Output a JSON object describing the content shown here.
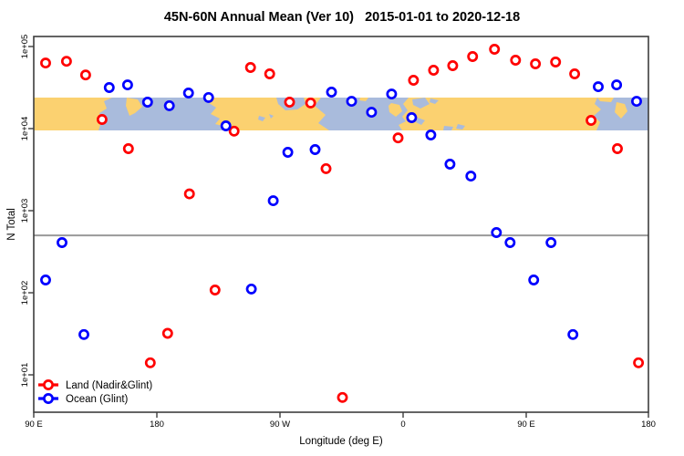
{
  "title": "45N-60N Annual Mean (Ver 10)   2015-01-01 to 2020-12-18",
  "axes": {
    "x": {
      "label": "Longitude (deg E)",
      "ticks": [
        {
          "lon": 90,
          "label": "90 E"
        },
        {
          "lon": 180,
          "label": "180"
        },
        {
          "lon": 270,
          "label": "90 W"
        },
        {
          "lon": 360,
          "label": "0"
        },
        {
          "lon": 450,
          "label": "90 E"
        },
        {
          "lon": 540,
          "label": "180"
        }
      ]
    },
    "y": {
      "label": "N Total",
      "ticks": [
        {
          "value": 100000,
          "label": "1e+05"
        },
        {
          "value": 10000,
          "label": "1e+04"
        },
        {
          "value": 1000,
          "label": "1e+03"
        },
        {
          "value": 100,
          "label": "1e+02"
        },
        {
          "value": 10,
          "label": "1e+01"
        }
      ]
    }
  },
  "legend": [
    {
      "label": "Land (Nadir&Glint)",
      "color": "#ff0000"
    },
    {
      "label": "Ocean (Glint)",
      "color": "#0000ff"
    }
  ],
  "chart_data": {
    "type": "scatter",
    "title": "45N-60N Annual Mean (Ver 10)   2015-01-01 to 2020-12-18",
    "xlabel": "Longitude (deg E)",
    "ylabel": "N Total",
    "x_domain": [
      90,
      540
    ],
    "x_note": "longitude axis wraps: 90E -> 180 -> 90W -> 0 -> 90E -> 180",
    "y_scale": "log10",
    "ylim": [
      3.5,
      130000
    ],
    "grid": false,
    "legend_position": "bottom-left",
    "reference_line": {
      "y": 500,
      "color": "#9a9a9a"
    },
    "map_band": {
      "description": "45N-60N world-map strip drawn across plot",
      "y_min": 10000,
      "y_max": 24000,
      "land_color": "#fbd170",
      "ocean_color": "#a9bbdc"
    },
    "series": [
      {
        "name": "Land (Nadir&Glint)",
        "color": "#ff0000",
        "points": [
          {
            "lon": 98.7,
            "n": 63000
          },
          {
            "lon": 114.0,
            "n": 66000
          },
          {
            "lon": 128.0,
            "n": 45000
          },
          {
            "lon": 140.0,
            "n": 12900
          },
          {
            "lon": 159.3,
            "n": 5700
          },
          {
            "lon": 175.3,
            "n": 14
          },
          {
            "lon": 188.0,
            "n": 32
          },
          {
            "lon": 204.0,
            "n": 1600
          },
          {
            "lon": 222.7,
            "n": 108
          },
          {
            "lon": 236.7,
            "n": 9300
          },
          {
            "lon": 248.7,
            "n": 55500
          },
          {
            "lon": 262.7,
            "n": 46400
          },
          {
            "lon": 277.3,
            "n": 21000
          },
          {
            "lon": 292.7,
            "n": 20500
          },
          {
            "lon": 304.0,
            "n": 3250
          },
          {
            "lon": 316.0,
            "n": 5.3
          },
          {
            "lon": 356.7,
            "n": 7700
          },
          {
            "lon": 368.0,
            "n": 38800
          },
          {
            "lon": 382.7,
            "n": 51400
          },
          {
            "lon": 396.7,
            "n": 58400
          },
          {
            "lon": 411.3,
            "n": 75500
          },
          {
            "lon": 427.3,
            "n": 92600
          },
          {
            "lon": 442.7,
            "n": 68100
          },
          {
            "lon": 457.3,
            "n": 61500
          },
          {
            "lon": 472.0,
            "n": 64700
          },
          {
            "lon": 486.0,
            "n": 46400
          },
          {
            "lon": 498.0,
            "n": 12600
          },
          {
            "lon": 517.3,
            "n": 5700
          },
          {
            "lon": 532.7,
            "n": 14
          }
        ]
      },
      {
        "name": "Ocean (Glint)",
        "color": "#0000ff",
        "points": [
          {
            "lon": 98.7,
            "n": 143
          },
          {
            "lon": 110.7,
            "n": 408
          },
          {
            "lon": 126.7,
            "n": 31
          },
          {
            "lon": 145.3,
            "n": 31600
          },
          {
            "lon": 158.7,
            "n": 34100
          },
          {
            "lon": 173.3,
            "n": 21000
          },
          {
            "lon": 189.3,
            "n": 19000
          },
          {
            "lon": 203.3,
            "n": 27100
          },
          {
            "lon": 218.0,
            "n": 23900
          },
          {
            "lon": 230.7,
            "n": 10800
          },
          {
            "lon": 249.3,
            "n": 111
          },
          {
            "lon": 265.3,
            "n": 1320
          },
          {
            "lon": 276.0,
            "n": 5140
          },
          {
            "lon": 296.0,
            "n": 5550
          },
          {
            "lon": 308.0,
            "n": 27800
          },
          {
            "lon": 322.7,
            "n": 21500
          },
          {
            "lon": 337.3,
            "n": 15800
          },
          {
            "lon": 352.0,
            "n": 26400
          },
          {
            "lon": 366.7,
            "n": 13600
          },
          {
            "lon": 380.7,
            "n": 8360
          },
          {
            "lon": 394.7,
            "n": 3690
          },
          {
            "lon": 410.0,
            "n": 2640
          },
          {
            "lon": 428.7,
            "n": 541
          },
          {
            "lon": 438.7,
            "n": 408
          },
          {
            "lon": 456.0,
            "n": 143
          },
          {
            "lon": 468.7,
            "n": 408
          },
          {
            "lon": 484.7,
            "n": 31
          },
          {
            "lon": 503.3,
            "n": 32400
          },
          {
            "lon": 516.7,
            "n": 34100
          },
          {
            "lon": 531.3,
            "n": 21500
          }
        ]
      }
    ]
  }
}
